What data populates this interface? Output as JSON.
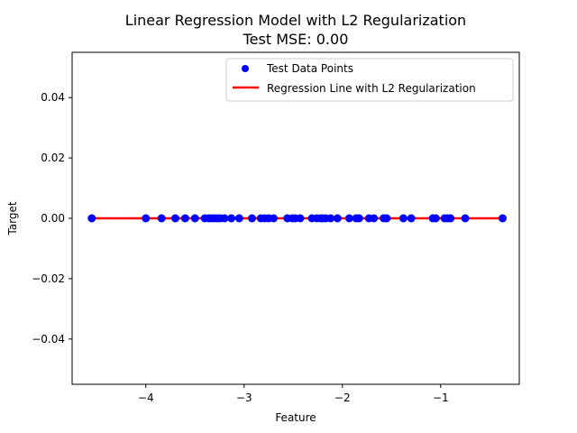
{
  "chart_data": {
    "type": "scatter",
    "title": "Linear Regression Model with L2 Regularization",
    "subtitle": "Test MSE: 0.00",
    "xlabel": "Feature",
    "ylabel": "Target",
    "xlim": [
      -4.75,
      -0.2
    ],
    "ylim": [
      -0.055,
      0.055
    ],
    "x_ticks": [
      -4,
      -3,
      -2,
      -1
    ],
    "x_tick_labels": [
      "−4",
      "−3",
      "−2",
      "−1"
    ],
    "y_ticks": [
      -0.04,
      -0.02,
      0.0,
      0.02,
      0.04
    ],
    "y_tick_labels": [
      "−0.04",
      "−0.02",
      "0.00",
      "0.02",
      "0.04"
    ],
    "grid": false,
    "legend_position": "top-right",
    "series": [
      {
        "name": "Test Data Points",
        "kind": "scatter",
        "color": "#0000ff",
        "x": [
          -4.55,
          -4.0,
          -3.84,
          -3.7,
          -3.6,
          -3.5,
          -3.4,
          -3.36,
          -3.33,
          -3.3,
          -3.27,
          -3.24,
          -3.2,
          -3.13,
          -3.05,
          -2.92,
          -2.83,
          -2.79,
          -2.75,
          -2.7,
          -2.56,
          -2.51,
          -2.48,
          -2.43,
          -2.31,
          -2.26,
          -2.22,
          -2.2,
          -2.17,
          -2.12,
          -2.05,
          -1.93,
          -1.86,
          -1.83,
          -1.73,
          -1.68,
          -1.58,
          -1.55,
          -1.38,
          -1.3,
          -1.08,
          -1.05,
          -0.96,
          -0.93,
          -0.9,
          -0.75,
          -0.37
        ],
        "y": [
          0,
          0,
          0,
          0,
          0,
          0,
          0,
          0,
          0,
          0,
          0,
          0,
          0,
          0,
          0,
          0,
          0,
          0,
          0,
          0,
          0,
          0,
          0,
          0,
          0,
          0,
          0,
          0,
          0,
          0,
          0,
          0,
          0,
          0,
          0,
          0,
          0,
          0,
          0,
          0,
          0,
          0,
          0,
          0,
          0,
          0,
          0
        ]
      },
      {
        "name": "Regression Line with L2 Regularization",
        "kind": "line",
        "color": "#ff0000",
        "x": [
          -4.55,
          -0.37
        ],
        "y": [
          0,
          0
        ]
      }
    ]
  }
}
